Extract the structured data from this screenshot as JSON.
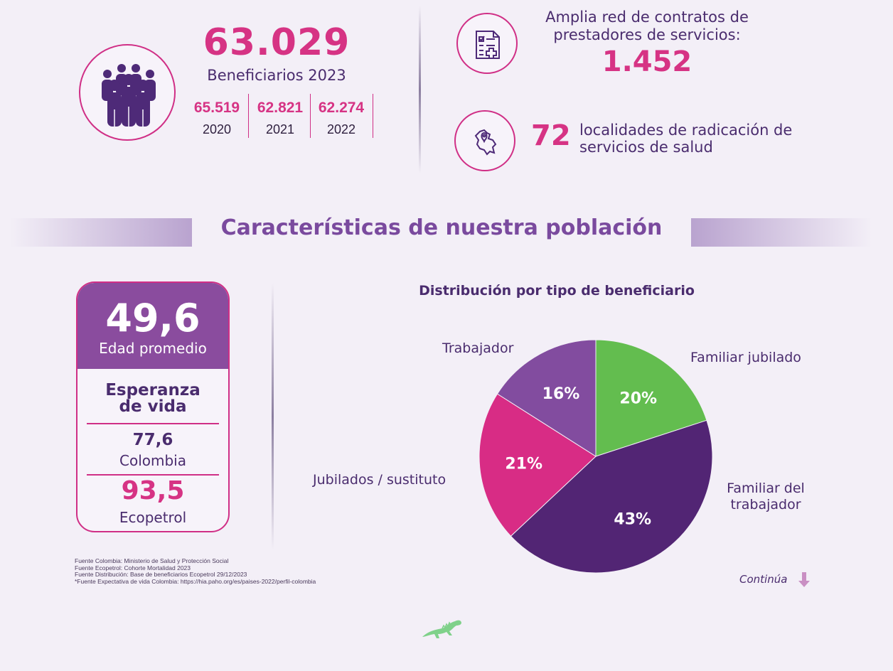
{
  "beneficiaries": {
    "total": "63.029",
    "label": "Beneficiarios 2023",
    "history": [
      {
        "value": "65.519",
        "year": "2020"
      },
      {
        "value": "62.821",
        "year": "2021"
      },
      {
        "value": "62.274",
        "year": "2022"
      }
    ],
    "icon": "people-group-icon"
  },
  "provider_network": {
    "text": "Amplia red de contratos de prestadores de servicios:",
    "value": "1.452",
    "icon": "medical-document-icon"
  },
  "localities": {
    "value": "72",
    "text": "localidades de radicación de servicios de salud",
    "icon": "colombia-map-pin-icon"
  },
  "section_title": "Características de nuestra población",
  "age_card": {
    "age_value": "49,6",
    "age_label": "Edad promedio",
    "life_expectancy_title": "Esperanza de vida",
    "colombia_value": "77,6",
    "colombia_label": "Colombia",
    "ecopetrol_value": "93,5",
    "ecopetrol_label": "Ecopetrol"
  },
  "chart_data": {
    "type": "pie",
    "title": "Distribución por tipo de beneficiario",
    "slices": [
      {
        "name": "Familiar jubilado",
        "value": 20,
        "label": "20%",
        "color": "#63bd4f"
      },
      {
        "name": "Familiar del trabajador",
        "value": 43,
        "label": "43%",
        "color": "#522574"
      },
      {
        "name": "Jubilados / sustituto",
        "value": 21,
        "label": "21%",
        "color": "#d82c85"
      },
      {
        "name": "Trabajador",
        "value": 16,
        "label": "16%",
        "color": "#824c9f"
      }
    ],
    "start": "top",
    "direction": "clockwise"
  },
  "sources": [
    "Fuente Colombia: Ministerio de Salud y Protección Social",
    "Fuente Ecopetrol: Cohorte Mortalidad 2023",
    "Fuente Distribución: Base de beneficiarios Ecopetrol 29/12/2023",
    "*Fuente Expectativa de vida Colombia: https://hia.paho.org/es/paises-2022/perfil-colombia"
  ],
  "continue_label": "Continúa",
  "colors": {
    "background": "#f3eff7",
    "magenta": "#d63384",
    "purple_dark": "#4a2c6e",
    "purple_mid": "#8a4c9e",
    "green": "#63bd4f"
  }
}
